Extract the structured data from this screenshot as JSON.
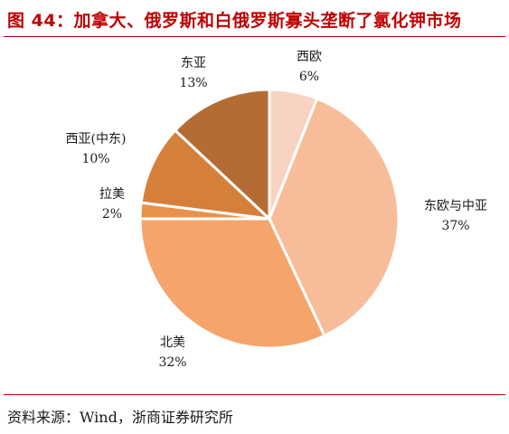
{
  "header": {
    "title": "图 44：加拿大、俄罗斯和白俄罗斯寡头垄断了氯化钾市场"
  },
  "footer": {
    "source": "资料来源：Wind，浙商证券研究所"
  },
  "chart_data": {
    "type": "pie",
    "title": "",
    "start": "12 o'clock",
    "direction": "clockwise",
    "slices": [
      {
        "name": "西欧",
        "value": 6,
        "label": "6%",
        "color": "#f8d3c2"
      },
      {
        "name": "东欧与中亚",
        "value": 37,
        "label": "37%",
        "color": "#f7bd9a"
      },
      {
        "name": "北美",
        "value": 32,
        "label": "32%",
        "color": "#f5a46b"
      },
      {
        "name": "拉美",
        "value": 2,
        "label": "2%",
        "color": "#e8914a"
      },
      {
        "name": "西亚(中东)",
        "value": 10,
        "label": "10%",
        "color": "#d5803a"
      },
      {
        "name": "东亚",
        "value": 13,
        "label": "13%",
        "color": "#b56c34"
      }
    ]
  }
}
